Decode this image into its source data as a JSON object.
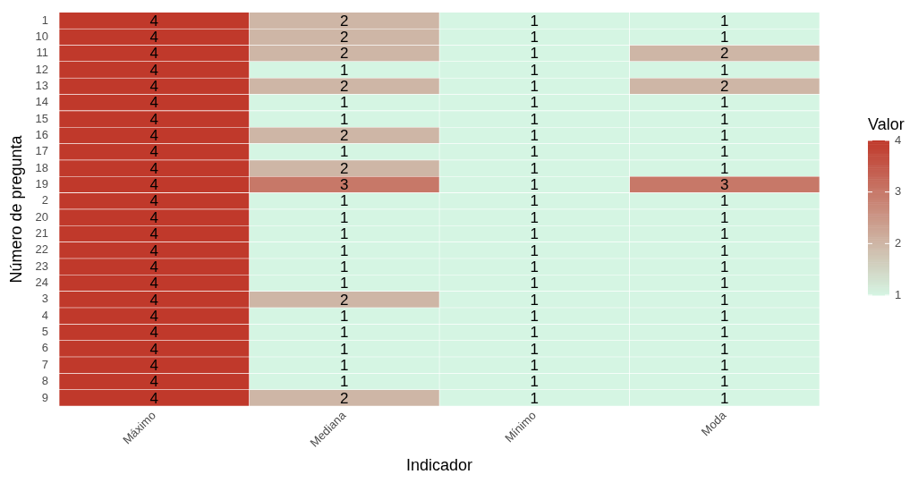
{
  "chart_data": {
    "type": "heatmap",
    "xlabel": "Indicador",
    "ylabel": "Número de pregunta",
    "legend_title": "Valor",
    "categories": [
      "Máximo",
      "Mediana",
      "Mínimo",
      "Moda"
    ],
    "y_categories": [
      "1",
      "10",
      "11",
      "12",
      "13",
      "14",
      "15",
      "16",
      "17",
      "18",
      "19",
      "2",
      "20",
      "21",
      "22",
      "23",
      "24",
      "3",
      "4",
      "5",
      "6",
      "7",
      "8",
      "9"
    ],
    "cells": [
      [
        4,
        2,
        1,
        1
      ],
      [
        4,
        2,
        1,
        1
      ],
      [
        4,
        2,
        1,
        2
      ],
      [
        4,
        1,
        1,
        1
      ],
      [
        4,
        2,
        1,
        2
      ],
      [
        4,
        1,
        1,
        1
      ],
      [
        4,
        1,
        1,
        1
      ],
      [
        4,
        2,
        1,
        1
      ],
      [
        4,
        1,
        1,
        1
      ],
      [
        4,
        2,
        1,
        1
      ],
      [
        4,
        3,
        1,
        3
      ],
      [
        4,
        1,
        1,
        1
      ],
      [
        4,
        1,
        1,
        1
      ],
      [
        4,
        1,
        1,
        1
      ],
      [
        4,
        1,
        1,
        1
      ],
      [
        4,
        1,
        1,
        1
      ],
      [
        4,
        1,
        1,
        1
      ],
      [
        4,
        2,
        1,
        1
      ],
      [
        4,
        1,
        1,
        1
      ],
      [
        4,
        1,
        1,
        1
      ],
      [
        4,
        1,
        1,
        1
      ],
      [
        4,
        1,
        1,
        1
      ],
      [
        4,
        1,
        1,
        1
      ],
      [
        4,
        2,
        1,
        1
      ]
    ],
    "colors": [
      "#d5f5e3",
      "#c0392b"
    ],
    "clim": [
      1,
      4
    ],
    "cticks": [
      1,
      2,
      3,
      4
    ],
    "data_labels": true
  }
}
